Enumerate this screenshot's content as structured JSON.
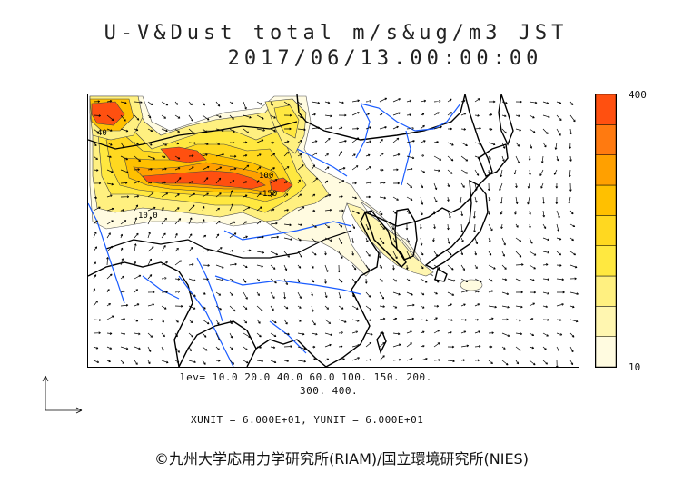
{
  "title": {
    "line1": "U-V&Dust total m/s&ug/m3 JST",
    "line2": "2017/06/13.00:00:00"
  },
  "colorbar": {
    "max_label": "400",
    "min_label": "10",
    "levels": [
      10,
      20,
      40,
      60,
      100,
      150,
      200,
      300,
      400
    ],
    "colors": [
      "#fffbe0",
      "#fff6b0",
      "#fff080",
      "#ffe840",
      "#ffd820",
      "#ffc000",
      "#ffa000",
      "#ff7a10",
      "#ff5010"
    ]
  },
  "levels_text": {
    "line1": "lev= 10.0 20.0 40.0 60.0 100. 150. 200.",
    "line2": "300. 400."
  },
  "units_text": "XUNIT = 6.000E+01, YUNIT = 6.000E+01",
  "contour_labels": [
    "40",
    "100",
    "150",
    "10.0"
  ],
  "copyright": "©九州大学応用力学研究所(RIAM)/国立環境研究所(NIES)",
  "icons": {
    "reference_vector": "reference-arrows-icon"
  },
  "colors": {
    "coastline": "#000000",
    "rivers": "#1a5cff",
    "wind_vectors": "#000000"
  }
}
